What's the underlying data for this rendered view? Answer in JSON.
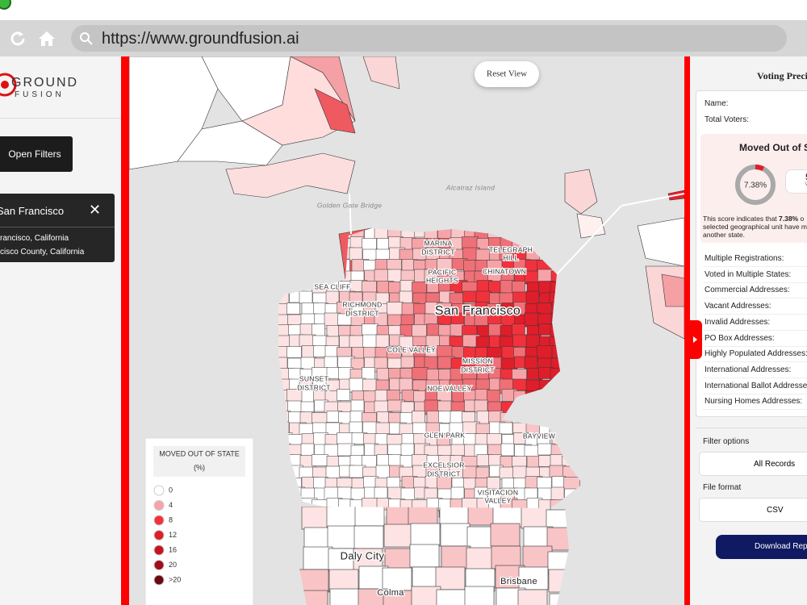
{
  "browser": {
    "url": "https://www.groundfusion.ai"
  },
  "sidebar": {
    "logo_top": "GROUND",
    "logo_bottom": "FUSION",
    "open_filters": "Open Filters",
    "location": {
      "title": "San Francisco",
      "lines": [
        "rancisco, California",
        "cisco County, California"
      ]
    }
  },
  "map": {
    "reset_view": "Reset View",
    "labels": [
      "Golden Gate Bridge",
      "Alcatraz Island",
      "MARINA",
      "DISTRICT",
      "TELEGRAPH",
      "HILL",
      "PACIFIC",
      "HEIGHTS",
      "CHINATOWN",
      "SEA CLIFF",
      "RICHMOND",
      "DISTRICT",
      "San Francisco",
      "COLE VALLEY",
      "MISSION",
      "DISTRICT",
      "SUNSET",
      "DISTRICT",
      "NOE VALLEY",
      "GLEN PARK",
      "BAYVIEW",
      "EXCELSIOR",
      "DISTRICT",
      "VISITACION",
      "VALLEY",
      "Daly City",
      "Brisbane",
      "Colma"
    ],
    "legend": {
      "title": "MOVED OUT OF STATE",
      "unit": "(%)",
      "items": [
        {
          "label": "0",
          "color": "#ffffff"
        },
        {
          "label": "4",
          "color": "#f6a3a7"
        },
        {
          "label": "8",
          "color": "#f1323c"
        },
        {
          "label": "12",
          "color": "#de1e2a"
        },
        {
          "label": "16",
          "color": "#c5141f"
        },
        {
          "label": "20",
          "color": "#a00f19"
        },
        {
          "label": ">20",
          "color": "#6a0a10"
        }
      ]
    }
  },
  "panel": {
    "title": "Voting Preci",
    "name_label": "Name:",
    "total_voters_label": "Total Voters:",
    "score_title": "Moved Out of St",
    "score": {
      "value": 7.38,
      "label": "7.38%"
    },
    "side_value": "5",
    "side_label": "Va",
    "description": [
      "This score indicates that ",
      "o",
      "selected geographical unit have m",
      "another state."
    ],
    "rows": [
      "Multiple Registrations:",
      "Voted in Multiple States:",
      "Commercial Addresses:",
      "Vacant Addresses:",
      "Invalid Addresses:",
      "PO Box Addresses:",
      "Highly Populated Addresses:",
      "International Addresses:",
      "International Ballot Addresse",
      "Nursing Homes Addresses:"
    ],
    "filter_label": "Filter options",
    "filter_value": "All Records",
    "format_label": "File format",
    "format_value": "CSV",
    "download": "Download Rep"
  }
}
